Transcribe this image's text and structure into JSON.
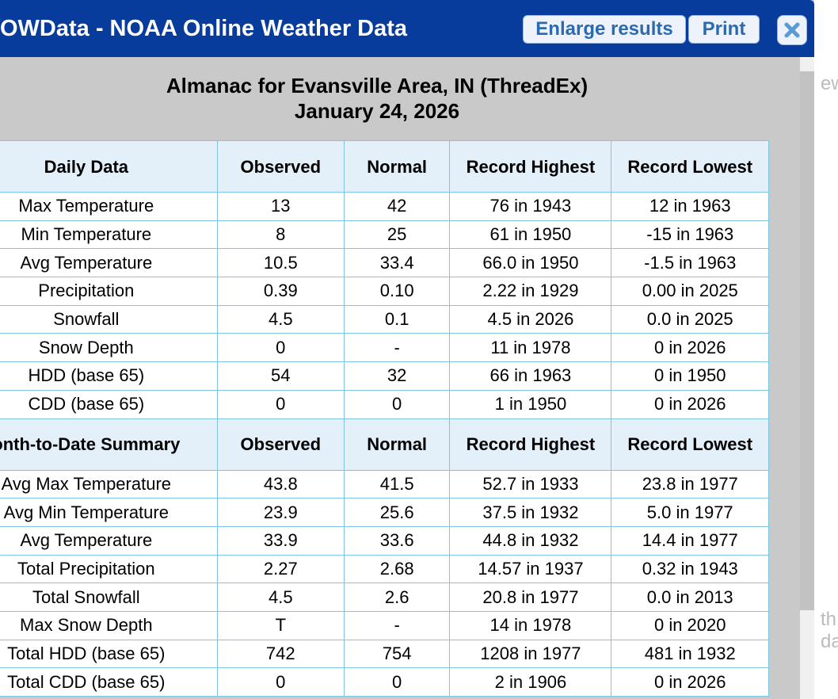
{
  "dialog": {
    "title": "OWData - NOAA Online Weather Data",
    "buttons": [
      "Enlarge results",
      "Print"
    ]
  },
  "report": {
    "title": "Almanac for Evansville Area, IN (ThreadEx)",
    "date": "January 24, 2026"
  },
  "table": {
    "sections": [
      {
        "header": [
          "Daily Data",
          "Observed",
          "Normal",
          "Record Highest",
          "Record Lowest"
        ],
        "rows": [
          [
            "Max Temperature",
            "13",
            "42",
            "76 in 1943",
            "12 in 1963"
          ],
          [
            "Min Temperature",
            "8",
            "25",
            "61 in 1950",
            "-15 in 1963"
          ],
          [
            "Avg Temperature",
            "10.5",
            "33.4",
            "66.0 in 1950",
            "-1.5 in 1963"
          ],
          [
            "Precipitation",
            "0.39",
            "0.10",
            "2.22 in 1929",
            "0.00 in 2025"
          ],
          [
            "Snowfall",
            "4.5",
            "0.1",
            "4.5 in 2026",
            "0.0 in 2025"
          ],
          [
            "Snow Depth",
            "0",
            "-",
            "11 in 1978",
            "0 in 2026"
          ],
          [
            "HDD (base 65)",
            "54",
            "32",
            "66 in 1963",
            "0 in 1950"
          ],
          [
            "CDD (base 65)",
            "0",
            "0",
            "1 in 1950",
            "0 in 2026"
          ]
        ]
      },
      {
        "header": [
          "onth-to-Date Summary",
          "Observed",
          "Normal",
          "Record Highest",
          "Record Lowest"
        ],
        "rows": [
          [
            "Avg Max Temperature",
            "43.8",
            "41.5",
            "52.7 in 1933",
            "23.8 in 1977"
          ],
          [
            "Avg Min Temperature",
            "23.9",
            "25.6",
            "37.5 in 1932",
            "5.0 in 1977"
          ],
          [
            "Avg Temperature",
            "33.9",
            "33.6",
            "44.8 in 1932",
            "14.4 in 1977"
          ],
          [
            "Total Precipitation",
            "2.27",
            "2.68",
            "14.57 in 1937",
            "0.32 in 1943"
          ],
          [
            "Total Snowfall",
            "4.5",
            "2.6",
            "20.8 in 1977",
            "0.0 in 2013"
          ],
          [
            "Max Snow Depth",
            "T",
            "-",
            "14 in 1978",
            "0 in 2020"
          ],
          [
            "Total HDD (base 65)",
            "742",
            "754",
            "1208 in 1977",
            "481 in 1932"
          ],
          [
            "Total CDD (base 65)",
            "0",
            "0",
            "2 in 1906",
            "0 in 2026"
          ]
        ]
      }
    ]
  },
  "background": {
    "fragments": [
      "ew",
      "th",
      "da"
    ]
  }
}
